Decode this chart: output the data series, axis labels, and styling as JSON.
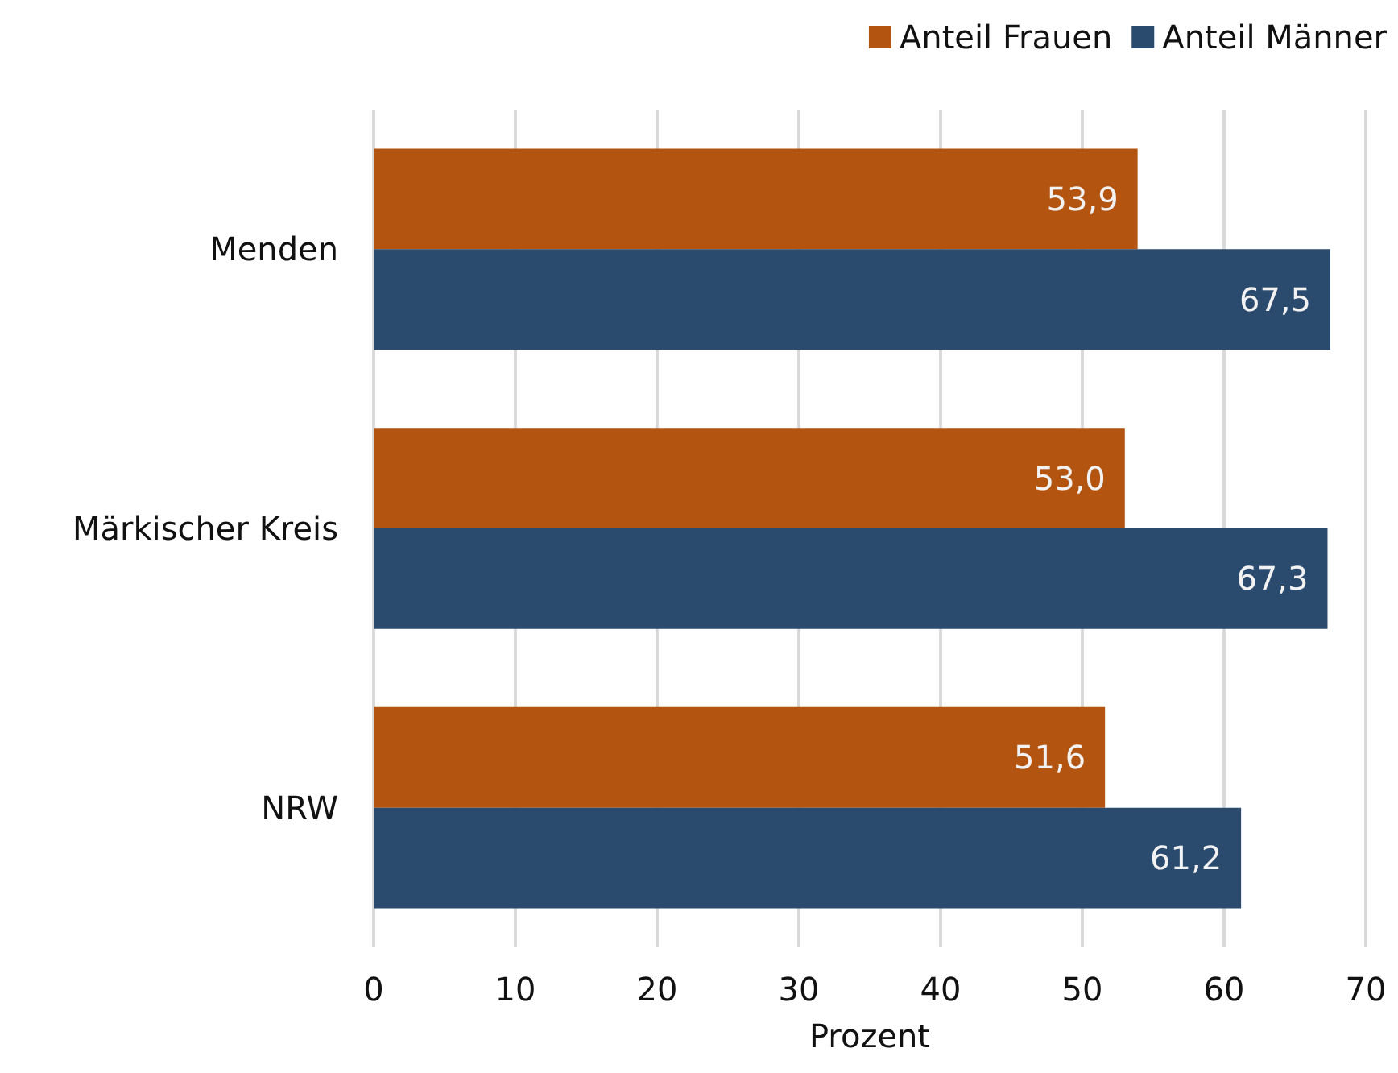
{
  "chart_data": {
    "type": "bar",
    "orientation": "horizontal",
    "xlabel": "Prozent",
    "categories": [
      "Menden",
      "Märkischer Kreis",
      "NRW"
    ],
    "series": [
      {
        "name": "Anteil Frauen",
        "color": "#b35411",
        "values": [
          53.9,
          53.0,
          51.6
        ],
        "value_labels": [
          "53,9",
          "53,0",
          "51,6"
        ]
      },
      {
        "name": "Anteil Männer",
        "color": "#2a4a6e",
        "values": [
          67.5,
          67.3,
          61.2
        ],
        "value_labels": [
          "67,5",
          "67,3",
          "61,2"
        ]
      }
    ],
    "xlim": [
      0,
      70
    ],
    "xticks": [
      0,
      10,
      20,
      30,
      40,
      50,
      60,
      70
    ],
    "grid": "x",
    "legend": "top right"
  }
}
